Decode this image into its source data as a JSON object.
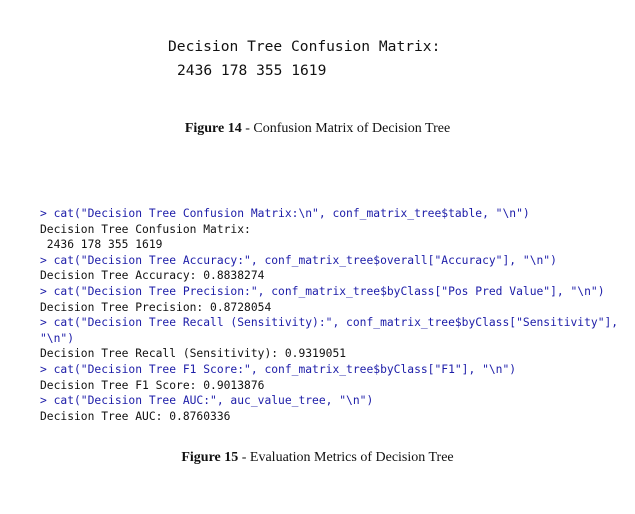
{
  "figure14": {
    "heading": "Decision Tree Confusion Matrix:",
    "values": "2436 178 355 1619",
    "caption": {
      "label": "Figure 14",
      "text": "- Confusion Matrix of Decision Tree"
    }
  },
  "figure15": {
    "console": [
      {
        "input": "> cat(\"Decision Tree Confusion Matrix:\\n\", conf_matrix_tree$table, \"\\n\")"
      },
      {
        "output": "Decision Tree Confusion Matrix:"
      },
      {
        "output": " 2436 178 355 1619"
      },
      {
        "input": "> cat(\"Decision Tree Accuracy:\", conf_matrix_tree$overall[\"Accuracy\"], \"\\n\")"
      },
      {
        "output": "Decision Tree Accuracy: 0.8838274"
      },
      {
        "input": "> cat(\"Decision Tree Precision:\", conf_matrix_tree$byClass[\"Pos Pred Value\"], \"\\n\")"
      },
      {
        "output": "Decision Tree Precision: 0.8728054"
      },
      {
        "input": "> cat(\"Decision Tree Recall (Sensitivity):\", conf_matrix_tree$byClass[\"Sensitivity\"],"
      },
      {
        "input": "\"\\n\")"
      },
      {
        "output": "Decision Tree Recall (Sensitivity): 0.9319051"
      },
      {
        "input": "> cat(\"Decision Tree F1 Score:\", conf_matrix_tree$byClass[\"F1\"], \"\\n\")"
      },
      {
        "output": "Decision Tree F1 Score: 0.9013876"
      },
      {
        "input": "> cat(\"Decision Tree AUC:\", auc_value_tree, \"\\n\")"
      },
      {
        "output": "Decision Tree AUC: 0.8760336"
      }
    ],
    "caption": {
      "label": "Figure 15",
      "text": "- Evaluation Metrics of Decision Tree"
    }
  }
}
